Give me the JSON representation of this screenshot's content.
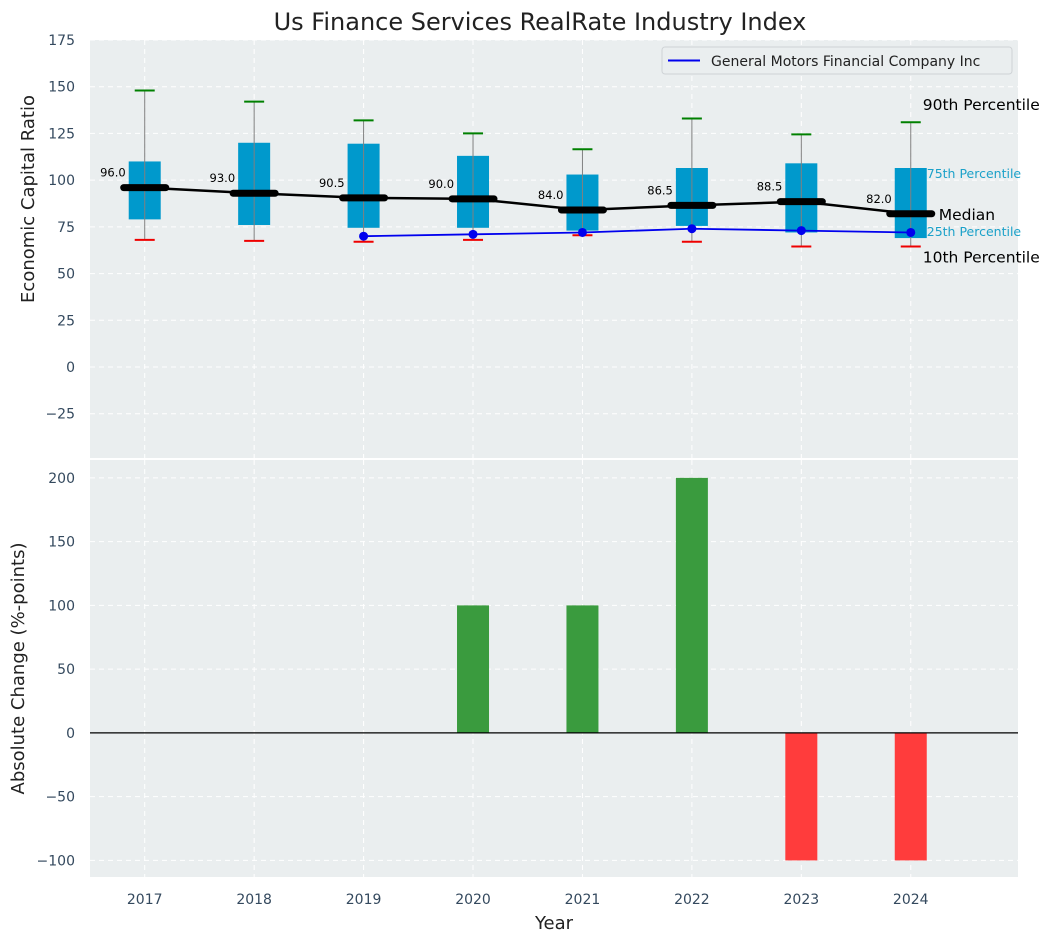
{
  "title": "Us Finance Services RealRate Industry Index",
  "chart_data": [
    {
      "type": "box",
      "name": "economic-capital-ratio",
      "ylabel": "Economic Capital Ratio",
      "ylim": [
        -48.7,
        175
      ],
      "yticks": [
        -25,
        0,
        25,
        50,
        75,
        100,
        125,
        150,
        175
      ],
      "ytick_labels": [
        "−25",
        "0",
        "25",
        "50",
        "75",
        "100",
        "125",
        "150",
        "175"
      ],
      "grid": true,
      "categories": [
        "2017",
        "2018",
        "2019",
        "2020",
        "2021",
        "2022",
        "2023",
        "2024"
      ],
      "p90": [
        148,
        142,
        132,
        125,
        116.5,
        133,
        124.5,
        131
      ],
      "p75": [
        110,
        120,
        119.5,
        113,
        103,
        106.5,
        109,
        106.5
      ],
      "median": [
        96.0,
        93.0,
        90.5,
        90.0,
        84.0,
        86.5,
        88.5,
        82.0
      ],
      "p25": [
        79,
        76,
        74.5,
        74.5,
        73,
        75.5,
        72,
        69
      ],
      "p10": [
        68,
        67.5,
        67,
        68,
        70.5,
        67,
        64.5,
        64.5
      ],
      "median_labels": [
        "96.0",
        "93.0",
        "90.5",
        "90.0",
        "84.0",
        "86.5",
        "88.5",
        "82.0"
      ],
      "series": [
        {
          "name": "General Motors Financial Company Inc",
          "color": "#0000ee",
          "categories": [
            "2019",
            "2020",
            "2021",
            "2022",
            "2023",
            "2024"
          ],
          "values": [
            70,
            71,
            72,
            74,
            73,
            72
          ]
        }
      ],
      "legend": {
        "position": "top-right",
        "entries": [
          "General Motors Financial Company Inc"
        ]
      },
      "percentile_labels": {
        "p90": "90th Percentile",
        "p75": "75th Percentile",
        "median": "Median",
        "p25": "25th Percentile",
        "p10": "10th Percentile"
      },
      "colors": {
        "box": "#0099cc",
        "median": "#000000",
        "p90_cap": "#008000",
        "p10_cap": "#ee0000",
        "whisker": "#808080",
        "background": "#eaeeef",
        "pct_blue_text": "#1ba1c9"
      }
    },
    {
      "type": "bar",
      "name": "absolute-change",
      "ylabel": "Absolute Change (%-points)",
      "xlabel": "Year",
      "ylim": [
        -113,
        214
      ],
      "yticks": [
        -100,
        -50,
        0,
        50,
        100,
        150,
        200
      ],
      "ytick_labels": [
        "−100",
        "−50",
        "0",
        "50",
        "100",
        "150",
        "200"
      ],
      "grid": true,
      "categories": [
        "2017",
        "2018",
        "2019",
        "2020",
        "2021",
        "2022",
        "2023",
        "2024"
      ],
      "values": [
        0,
        0,
        0,
        100,
        100,
        200,
        -100,
        -100
      ],
      "colors": {
        "positive": "#3a9b3e",
        "negative": "#ff3c3c",
        "zero_line": "#000000"
      }
    }
  ]
}
